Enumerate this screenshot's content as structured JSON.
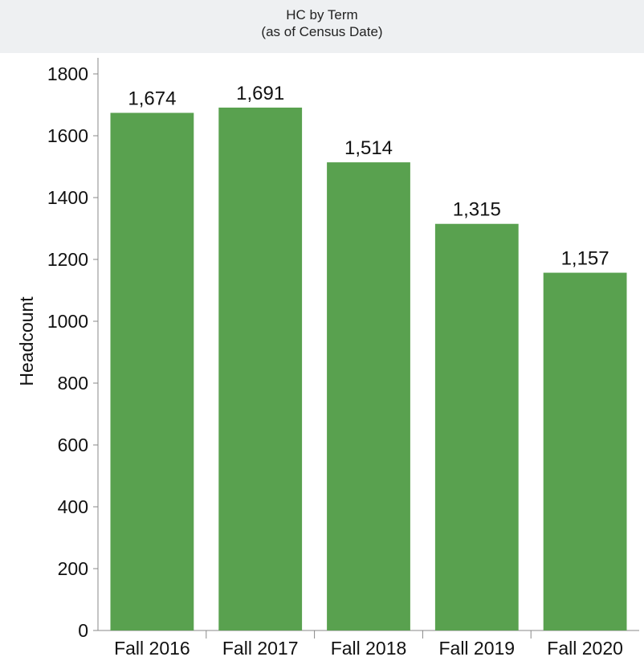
{
  "chart_data": {
    "type": "bar",
    "title": "HC by Term",
    "subtitle": "(as of Census Date)",
    "xlabel": "",
    "ylabel": "Headcount",
    "categories": [
      "Fall 2016",
      "Fall 2017",
      "Fall 2018",
      "Fall 2019",
      "Fall 2020"
    ],
    "values": [
      1674,
      1691,
      1514,
      1315,
      1157
    ],
    "value_labels": [
      "1,674",
      "1,691",
      "1,514",
      "1,315",
      "1,157"
    ],
    "ylim": [
      0,
      1800
    ],
    "yticks": [
      0,
      200,
      400,
      600,
      800,
      1000,
      1200,
      1400,
      1600,
      1800
    ],
    "bar_color": "#59a14f",
    "grid": false,
    "legend": "none"
  }
}
